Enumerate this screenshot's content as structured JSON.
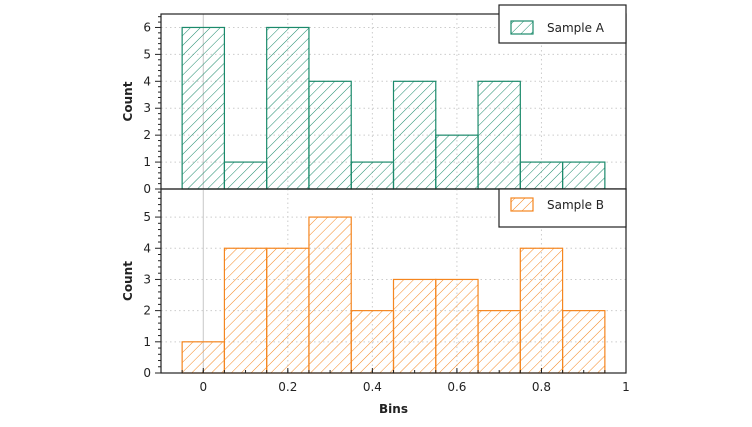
{
  "chart_data": [
    {
      "type": "bar",
      "subtype": "histogram",
      "bin_centers": [
        0,
        0.1,
        0.2,
        0.3,
        0.4,
        0.5,
        0.6,
        0.7,
        0.8,
        0.9
      ],
      "bin_width": 0.1,
      "series": [
        {
          "name": "Sample A",
          "values": [
            6,
            1,
            6,
            4,
            1,
            4,
            2,
            4,
            1,
            1
          ],
          "color": "#1b8a6b",
          "hatch": "diagonal"
        }
      ],
      "ylabel": "Count",
      "xlim": [
        -0.1,
        1
      ],
      "ylim": [
        0,
        6.5
      ],
      "yticks": [
        "0",
        "1",
        "2",
        "3",
        "4",
        "5",
        "6"
      ],
      "grid": true,
      "legend": "top-right"
    },
    {
      "type": "bar",
      "subtype": "histogram",
      "bin_centers": [
        0,
        0.1,
        0.2,
        0.3,
        0.4,
        0.5,
        0.6,
        0.7,
        0.8,
        0.9
      ],
      "bin_width": 0.1,
      "series": [
        {
          "name": "Sample B",
          "values": [
            1,
            4,
            4,
            5,
            2,
            3,
            3,
            2,
            4,
            2
          ],
          "color": "#f5861f",
          "hatch": "diagonal"
        }
      ],
      "xlabel": "Bins",
      "ylabel": "Count",
      "xlim": [
        -0.1,
        1
      ],
      "ylim": [
        0,
        5.9
      ],
      "xticks": [
        "0",
        "0.2",
        "0.4",
        "0.6",
        "0.8",
        "1"
      ],
      "yticks": [
        "0",
        "1",
        "2",
        "3",
        "4",
        "5"
      ],
      "grid": true,
      "legend": "top-right"
    }
  ]
}
